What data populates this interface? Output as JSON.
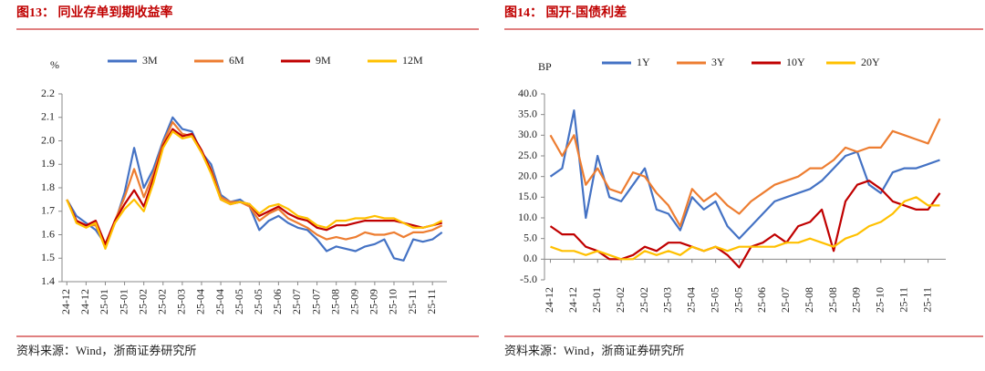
{
  "chart_data": [
    {
      "type": "line",
      "title": "图13： 同业存单到期收益率",
      "y_label": "%",
      "source": "资料来源：Wind，浙商证券研究所",
      "categories": [
        "24-12",
        null,
        "24-12",
        null,
        "25-01",
        null,
        "25-01",
        null,
        "25-02",
        null,
        "25-02",
        null,
        "25-03",
        null,
        "25-04",
        null,
        "25-04",
        null,
        "25-05",
        null,
        "25-05",
        null,
        "25-06",
        null,
        "25-07",
        null,
        "25-07",
        null,
        "25-08",
        null,
        "25-09",
        null,
        "25-09",
        null,
        "25-10",
        null,
        "25-11",
        null,
        "25-11",
        null
      ],
      "series": [
        {
          "name": "3M",
          "color": "#4472c4",
          "values": [
            1.75,
            1.68,
            1.65,
            1.62,
            1.56,
            1.65,
            1.78,
            1.97,
            1.8,
            1.88,
            2.0,
            2.1,
            2.05,
            2.04,
            1.95,
            1.9,
            1.77,
            1.74,
            1.75,
            1.72,
            1.62,
            1.66,
            1.68,
            1.65,
            1.63,
            1.62,
            1.58,
            1.53,
            1.55,
            1.54,
            1.53,
            1.55,
            1.56,
            1.58,
            1.5,
            1.49,
            1.58,
            1.57,
            1.58,
            1.61
          ]
        },
        {
          "name": "6M",
          "color": "#ed7d31",
          "values": [
            1.75,
            1.66,
            1.64,
            1.64,
            1.55,
            1.66,
            1.76,
            1.88,
            1.76,
            1.86,
            1.99,
            2.08,
            2.03,
            2.02,
            1.95,
            1.88,
            1.76,
            1.74,
            1.74,
            1.72,
            1.66,
            1.69,
            1.71,
            1.67,
            1.65,
            1.63,
            1.6,
            1.58,
            1.59,
            1.58,
            1.59,
            1.61,
            1.6,
            1.6,
            1.61,
            1.59,
            1.61,
            1.61,
            1.62,
            1.64
          ]
        },
        {
          "name": "9M",
          "color": "#c00000",
          "values": [
            1.75,
            1.66,
            1.64,
            1.66,
            1.56,
            1.66,
            1.73,
            1.79,
            1.72,
            1.84,
            1.98,
            2.05,
            2.02,
            2.03,
            1.96,
            1.87,
            1.75,
            1.73,
            1.74,
            1.73,
            1.68,
            1.7,
            1.72,
            1.69,
            1.67,
            1.66,
            1.63,
            1.62,
            1.64,
            1.64,
            1.65,
            1.66,
            1.66,
            1.66,
            1.66,
            1.65,
            1.64,
            1.63,
            1.64,
            1.65
          ]
        },
        {
          "name": "12M",
          "color": "#ffc000",
          "values": [
            1.75,
            1.65,
            1.63,
            1.65,
            1.54,
            1.65,
            1.71,
            1.75,
            1.7,
            1.82,
            1.97,
            2.04,
            2.01,
            2.02,
            1.95,
            1.86,
            1.75,
            1.73,
            1.74,
            1.73,
            1.69,
            1.72,
            1.73,
            1.71,
            1.68,
            1.67,
            1.64,
            1.63,
            1.66,
            1.66,
            1.67,
            1.67,
            1.68,
            1.67,
            1.67,
            1.65,
            1.63,
            1.63,
            1.64,
            1.66
          ]
        }
      ],
      "ylim": [
        1.4,
        2.2
      ],
      "yticks": [
        1.4,
        1.5,
        1.6,
        1.7,
        1.8,
        1.9,
        {
          "value": 2,
          "label": "2.0"
        },
        2.1,
        2.2
      ],
      "grid": false
    },
    {
      "type": "line",
      "title": "图14： 国开-国债利差",
      "y_label": "BP",
      "source": "资料来源：Wind，浙商证券研究所",
      "categories": [
        "24-12",
        null,
        "24-12",
        null,
        "25-01",
        null,
        "25-02",
        null,
        "25-02",
        null,
        "25-03",
        null,
        "25-04",
        null,
        "25-05",
        null,
        "25-05",
        null,
        "25-06",
        null,
        "25-07",
        null,
        "25-08",
        null,
        "25-08",
        null,
        "25-09",
        null,
        "25-10",
        null,
        "25-11",
        null,
        "25-11",
        null
      ],
      "series": [
        {
          "name": "1Y",
          "color": "#4472c4",
          "values": [
            20,
            22,
            36,
            10,
            25,
            15,
            14,
            18,
            22,
            12,
            11,
            7,
            15,
            12,
            14,
            8,
            5,
            8,
            11,
            14,
            15,
            16,
            17,
            19,
            22,
            25,
            26,
            18,
            16,
            21,
            22,
            22,
            23,
            24
          ]
        },
        {
          "name": "3Y",
          "color": "#ed7d31",
          "values": [
            30,
            25,
            30,
            18,
            22,
            17,
            16,
            21,
            20,
            16,
            13,
            8,
            17,
            14,
            16,
            13,
            11,
            14,
            16,
            18,
            19,
            20,
            22,
            22,
            24,
            27,
            26,
            27,
            27,
            31,
            30,
            29,
            28,
            34
          ]
        },
        {
          "name": "10Y",
          "color": "#c00000",
          "values": [
            8,
            6,
            6,
            3,
            2,
            0,
            0,
            1,
            3,
            2,
            4,
            4,
            3,
            2,
            3,
            1,
            -2,
            3,
            4,
            6,
            4,
            8,
            9,
            12,
            2,
            14,
            18,
            19,
            17,
            14,
            13,
            12,
            12,
            16
          ]
        },
        {
          "name": "20Y",
          "color": "#ffc000",
          "values": [
            3,
            2,
            2,
            1,
            2,
            1,
            0,
            0,
            2,
            1,
            2,
            1,
            3,
            2,
            3,
            2,
            3,
            3,
            3,
            3,
            4,
            4,
            5,
            4,
            3,
            5,
            6,
            8,
            9,
            11,
            14,
            15,
            13,
            13
          ]
        }
      ],
      "ylim": [
        -5,
        40
      ],
      "yticks": [
        {
          "value": -5,
          "label": "-5.0"
        },
        {
          "value": 0,
          "label": "0.0"
        },
        {
          "value": 5,
          "label": "5.0"
        },
        {
          "value": 10,
          "label": "10.0"
        },
        {
          "value": 15,
          "label": "15.0"
        },
        {
          "value": 20,
          "label": "20.0"
        },
        {
          "value": 25,
          "label": "25.0"
        },
        {
          "value": 30,
          "label": "30.0"
        },
        {
          "value": 35,
          "label": "35.0"
        },
        {
          "value": 40,
          "label": "40.0"
        }
      ],
      "grid": false
    }
  ]
}
